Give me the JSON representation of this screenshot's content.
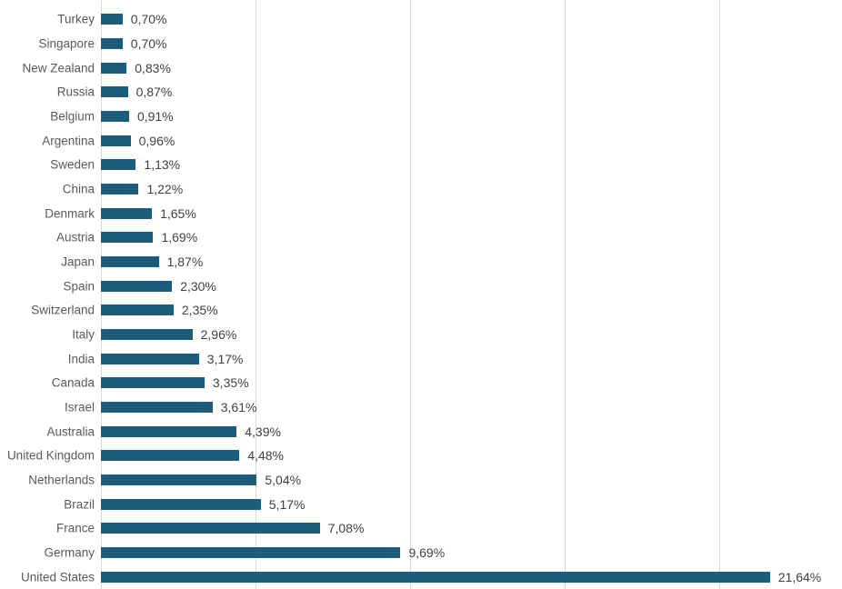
{
  "colors": {
    "bar": "#1E5C7C",
    "gridline": "#D9D9D9",
    "axis_line": "#D9D9D9",
    "category_label": "#595959",
    "value_label": "#404040",
    "background": "#FFFFFF"
  },
  "chart_data": {
    "type": "bar",
    "orientation": "horizontal",
    "title": "",
    "xlabel": "",
    "ylabel": "",
    "legend": "none",
    "grid": "vertical",
    "xlim": [
      0,
      24
    ],
    "gridline_interval_pct": 5,
    "gridline_values_pct": [
      0,
      5,
      10,
      15,
      20
    ],
    "value_format": "percent, comma decimal separator, labels at bar end",
    "categories": [
      "Turkey",
      "Singapore",
      "New Zealand",
      "Russia",
      "Belgium",
      "Argentina",
      "Sweden",
      "China",
      "Denmark",
      "Austria",
      "Japan",
      "Spain",
      "Switzerland",
      "Italy",
      "India",
      "Canada",
      "Israel",
      "Australia",
      "United Kingdom",
      "Netherlands",
      "Brazil",
      "France",
      "Germany",
      "United States"
    ],
    "values": [
      0.7,
      0.7,
      0.83,
      0.87,
      0.91,
      0.96,
      1.13,
      1.22,
      1.65,
      1.69,
      1.87,
      2.3,
      2.35,
      2.96,
      3.17,
      3.35,
      3.61,
      4.39,
      4.48,
      5.04,
      5.17,
      7.08,
      9.69,
      21.64
    ],
    "value_labels": [
      "0,70%",
      "0,70%",
      "0,83%",
      "0,87%",
      "0,91%",
      "0,96%",
      "1,13%",
      "1,22%",
      "1,65%",
      "1,69%",
      "1,87%",
      "2,30%",
      "2,35%",
      "2,96%",
      "3,17%",
      "3,35%",
      "3,61%",
      "4,39%",
      "4,48%",
      "5,04%",
      "5,17%",
      "7,08%",
      "9,69%",
      "21,64%"
    ]
  }
}
